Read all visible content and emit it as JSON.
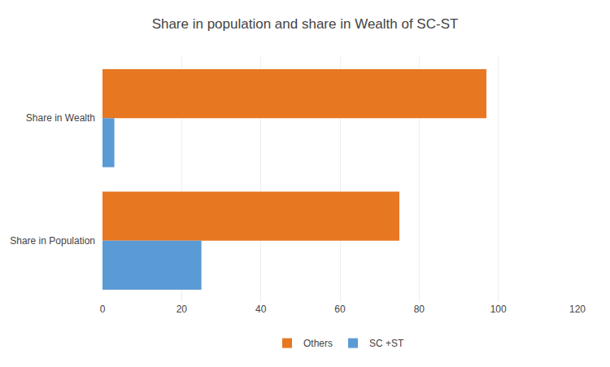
{
  "chart_data": {
    "type": "bar",
    "orientation": "horizontal",
    "title": "Share in population and share in Wealth of SC-ST",
    "categories": [
      "Share in Wealth",
      "Share in Population"
    ],
    "series": [
      {
        "name": "Others",
        "color": "#E87722",
        "values": [
          97,
          75
        ]
      },
      {
        "name": "SC +ST",
        "color": "#5B9BD5",
        "values": [
          3,
          25
        ]
      }
    ],
    "xlim": [
      0,
      120
    ],
    "xticks": [
      0,
      20,
      40,
      60,
      80,
      100,
      120
    ],
    "grid": true,
    "legend": "bottom"
  }
}
